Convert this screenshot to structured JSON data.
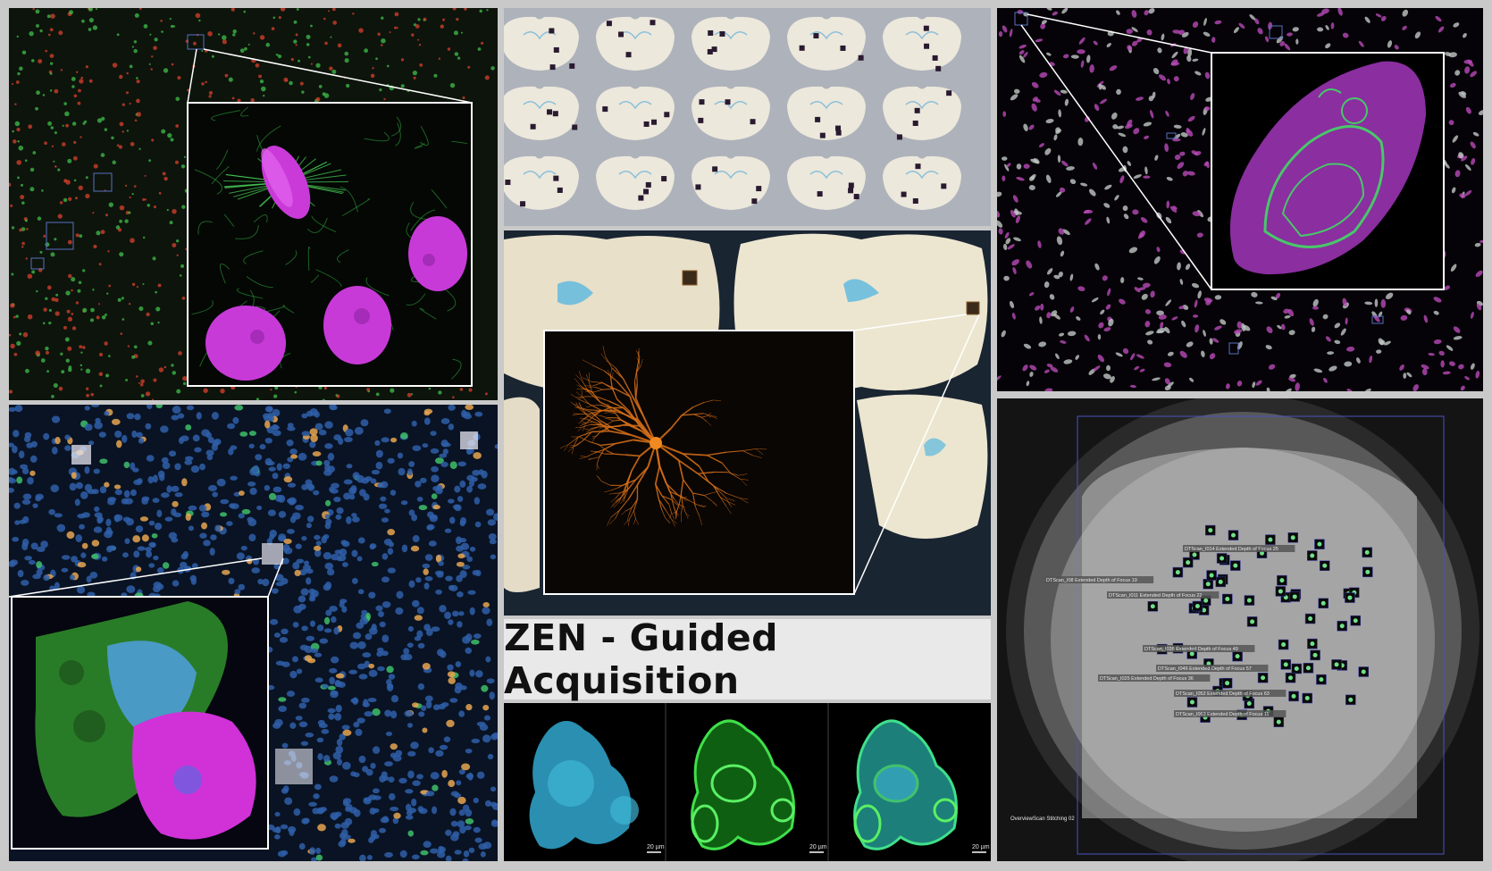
{
  "title": "ZEN - Guided Acquisition",
  "organoid_panels": {
    "scale_bar_label": "20 µm"
  },
  "well_panel": {
    "corner_label": "OverviewScan Stitching 02",
    "region_labels": [
      "DTScan_I014 Extended Depth of Focus 25",
      "DTScan_I08 Extended Depth of Focus 19",
      "DTScan_I011 Extended Depth of Focus 22",
      "DTScan_I038 Extended Depth of Focus 49",
      "DTScan_I046 Extended Depth of Focus 57",
      "DTScan_I025 Extended Depth of Focus 36",
      "DTScan_I052 Extended Depth of Focus 63",
      "DTScan_I063 Extended Depth of Focus 11"
    ]
  },
  "colors": {
    "background": "#c9c9c9",
    "green_cells": "#3fbf4a",
    "magenta_nuclei": "#d23bd8",
    "blue_nuclei": "#3a6fb8",
    "neuron_orange": "#e07a1a",
    "cyan_stain": "#3fb5d6"
  }
}
